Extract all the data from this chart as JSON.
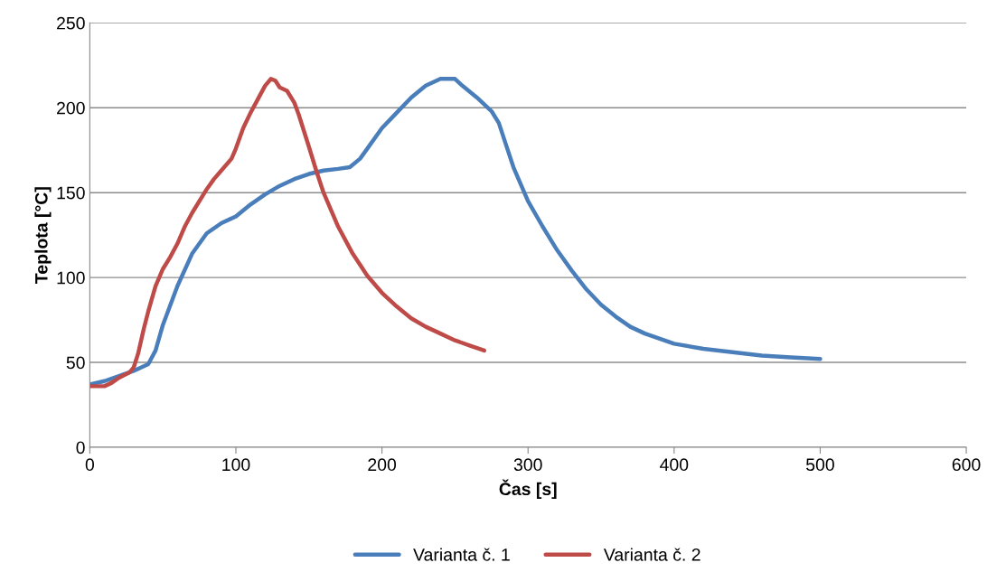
{
  "chart_data": {
    "type": "line",
    "xlabel": "Čas [s]",
    "ylabel": "Teplota [°C]",
    "xlim": [
      0,
      600
    ],
    "xticks": [
      0,
      100,
      200,
      300,
      400,
      500,
      600
    ],
    "ylim": [
      0,
      250
    ],
    "yticks": [
      0,
      50,
      100,
      150,
      200,
      250
    ],
    "grid": "y",
    "legend": "bottom",
    "marker": "none",
    "line_style": "solid",
    "series": [
      {
        "name": "Varianta č. 1",
        "color": "#4a7ebb",
        "x": [
          0,
          10,
          20,
          30,
          40,
          45,
          50,
          60,
          70,
          80,
          90,
          100,
          110,
          120,
          130,
          140,
          150,
          160,
          170,
          178,
          185,
          190,
          200,
          210,
          220,
          230,
          240,
          250,
          255,
          265,
          275,
          280,
          285,
          290,
          300,
          310,
          320,
          330,
          340,
          350,
          360,
          370,
          380,
          400,
          420,
          440,
          460,
          480,
          500
        ],
        "values": [
          37,
          39,
          42,
          45,
          49,
          57,
          72,
          95,
          114,
          126,
          132,
          136,
          143,
          149,
          154,
          158,
          161,
          163,
          164,
          165,
          170,
          176,
          188,
          197,
          206,
          213,
          217,
          217,
          213,
          206,
          198,
          191,
          178,
          165,
          145,
          130,
          116,
          104,
          93,
          84,
          77,
          71,
          67,
          61,
          58,
          56,
          54,
          53,
          52
        ]
      },
      {
        "name": "Varianta č. 2",
        "color": "#be4b48",
        "x": [
          0,
          10,
          15,
          20,
          27,
          30,
          33,
          37,
          40,
          45,
          50,
          55,
          60,
          65,
          70,
          80,
          85,
          90,
          97,
          100,
          105,
          110,
          115,
          120,
          124,
          127,
          130,
          135,
          140,
          143,
          150,
          155,
          160,
          170,
          180,
          190,
          200,
          210,
          220,
          230,
          240,
          250,
          260,
          270
        ],
        "values": [
          36,
          36,
          38,
          41,
          44,
          47,
          55,
          70,
          80,
          95,
          105,
          112,
          120,
          130,
          138,
          152,
          158,
          163,
          170,
          176,
          188,
          197,
          205,
          213,
          217,
          216,
          212,
          210,
          203,
          196,
          177,
          163,
          150,
          130,
          114,
          101,
          91,
          83,
          76,
          71,
          67,
          63,
          60,
          57
        ]
      }
    ]
  }
}
